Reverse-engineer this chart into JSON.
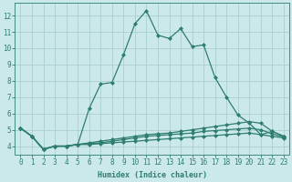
{
  "xlabel": "Humidex (Indice chaleur)",
  "background_color": "#cce9e9",
  "grid_color": "#aacfcf",
  "line_color": "#2e7d6e",
  "x_values": [
    0,
    1,
    2,
    3,
    4,
    5,
    6,
    7,
    8,
    9,
    10,
    11,
    12,
    13,
    14,
    15,
    16,
    17,
    18,
    19,
    20,
    21,
    22,
    23
  ],
  "series": [
    [
      5.1,
      4.6,
      3.8,
      4.0,
      4.0,
      4.1,
      6.3,
      7.8,
      7.9,
      9.6,
      11.5,
      12.3,
      10.8,
      10.6,
      11.2,
      10.1,
      10.2,
      8.2,
      7.0,
      5.9,
      5.4,
      4.7,
      4.9,
      4.6
    ],
    [
      5.1,
      4.6,
      3.8,
      4.0,
      4.0,
      4.1,
      4.2,
      4.3,
      4.4,
      4.5,
      4.6,
      4.7,
      4.75,
      4.8,
      4.9,
      5.0,
      5.1,
      5.2,
      5.3,
      5.4,
      5.5,
      5.4,
      4.9,
      4.6
    ],
    [
      5.1,
      4.6,
      3.8,
      4.0,
      4.0,
      4.1,
      4.15,
      4.2,
      4.3,
      4.4,
      4.5,
      4.6,
      4.65,
      4.7,
      4.75,
      4.8,
      4.9,
      4.95,
      5.0,
      5.05,
      5.1,
      5.0,
      4.75,
      4.55
    ],
    [
      5.1,
      4.6,
      3.8,
      4.0,
      4.0,
      4.1,
      4.1,
      4.15,
      4.2,
      4.25,
      4.3,
      4.35,
      4.4,
      4.45,
      4.5,
      4.55,
      4.6,
      4.65,
      4.7,
      4.75,
      4.8,
      4.7,
      4.6,
      4.5
    ]
  ],
  "ylim": [
    3.5,
    12.8
  ],
  "xlim": [
    -0.5,
    23.5
  ],
  "yticks": [
    4,
    5,
    6,
    7,
    8,
    9,
    10,
    11,
    12
  ],
  "xticks": [
    0,
    1,
    2,
    3,
    4,
    5,
    6,
    7,
    8,
    9,
    10,
    11,
    12,
    13,
    14,
    15,
    16,
    17,
    18,
    19,
    20,
    21,
    22,
    23
  ],
  "marker": "D",
  "marker_size": 2.0,
  "line_width": 0.9,
  "axis_fontsize": 6,
  "tick_fontsize": 5.5
}
